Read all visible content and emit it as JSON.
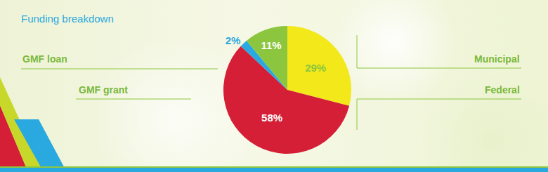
{
  "chart_data": {
    "type": "pie",
    "title": "Funding breakdown",
    "categories": [
      "Municipal",
      "Federal",
      "GMF grant",
      "GMF loan"
    ],
    "values": [
      29,
      58,
      2,
      11
    ],
    "value_labels": [
      "29%",
      "58%",
      "2%",
      "11%"
    ],
    "colors": [
      "#f2e81a",
      "#d41f36",
      "#2aa9e0",
      "#8cc63f"
    ],
    "data_labels": true
  }
}
